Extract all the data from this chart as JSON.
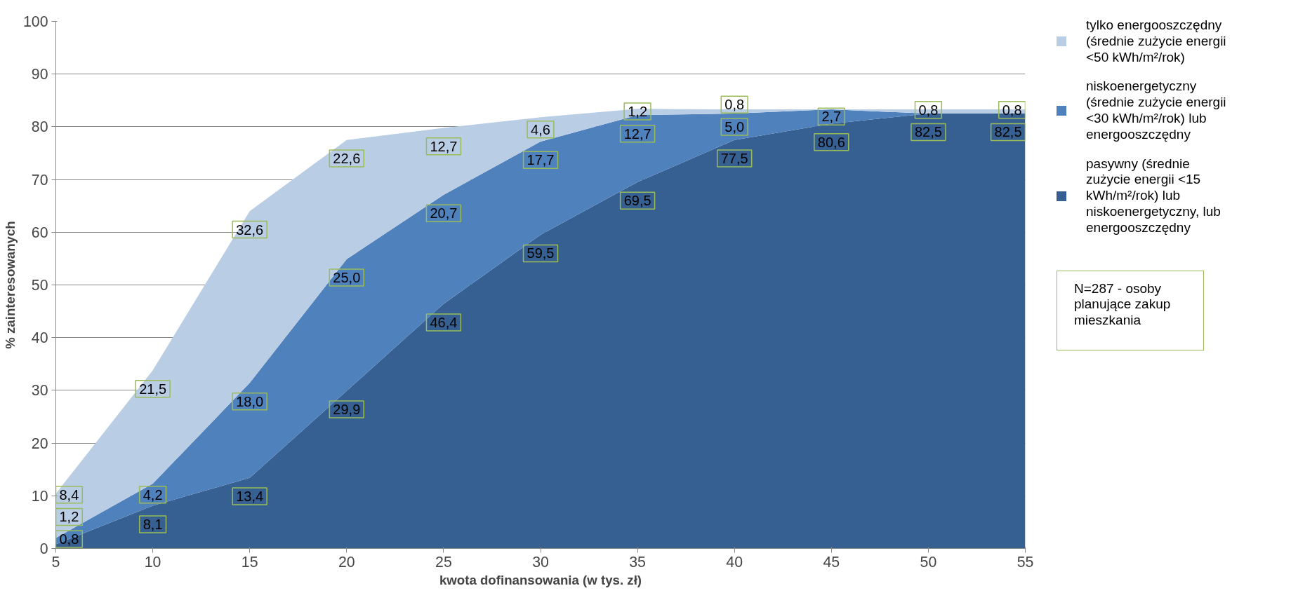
{
  "chart_data": {
    "type": "area",
    "stacked": true,
    "x": [
      5,
      10,
      15,
      20,
      25,
      30,
      35,
      40,
      45,
      50,
      55
    ],
    "xlabel": "kwota dofinansowania (w tys. zł)",
    "ylabel": "% zainteresowanych",
    "xlim": [
      5,
      55
    ],
    "xticks": [
      5,
      10,
      15,
      20,
      25,
      30,
      35,
      40,
      45,
      50,
      55
    ],
    "ylim": [
      0,
      100
    ],
    "yticks": [
      0,
      10,
      20,
      30,
      40,
      50,
      60,
      70,
      80,
      90,
      100
    ],
    "grid": "y",
    "legend": "right",
    "series": [
      {
        "name": "pasywny (średnie zużycie energii <15 kWh/m²/rok) lub niskoenergetyczny, lub energooszczędny",
        "color": "#376092",
        "values": [
          0.8,
          8.1,
          13.4,
          29.9,
          46.4,
          59.5,
          69.5,
          77.5,
          80.6,
          82.5,
          82.5
        ],
        "value_labels": [
          "0,8",
          "8,1",
          "13,4",
          "29,9",
          "46,4",
          "59,5",
          "69,5",
          "77,5",
          "80,6",
          "82,5",
          "82,5"
        ]
      },
      {
        "name": "niskoenergetyczny (średnie zużycie energii <30 kWh/m²/rok) lub energooszczędny",
        "color": "#4f81bd",
        "values": [
          1.2,
          4.2,
          18.0,
          25.0,
          20.7,
          17.7,
          12.7,
          5.0,
          2.7,
          0,
          0
        ],
        "value_labels": [
          "1,2",
          "4,2",
          "18,0",
          "25,0",
          "20,7",
          "17,7",
          "12,7",
          "5,0",
          "2,7",
          null,
          null
        ]
      },
      {
        "name": "tylko energooszczędny (średnie zużycie energii <50 kWh/m²/rok)",
        "color": "#b9cde5",
        "values": [
          8.4,
          21.5,
          32.6,
          22.6,
          12.7,
          4.6,
          1.2,
          0.8,
          0,
          0.8,
          0.8
        ],
        "value_labels": [
          "8,4",
          "21,5",
          "32,6",
          "22,6",
          "12,7",
          "4,6",
          "1,2",
          "0,8",
          null,
          "0,8",
          "0,8"
        ]
      }
    ],
    "annotations": [
      "N=287 - osoby planujące zakup mieszkania"
    ]
  }
}
